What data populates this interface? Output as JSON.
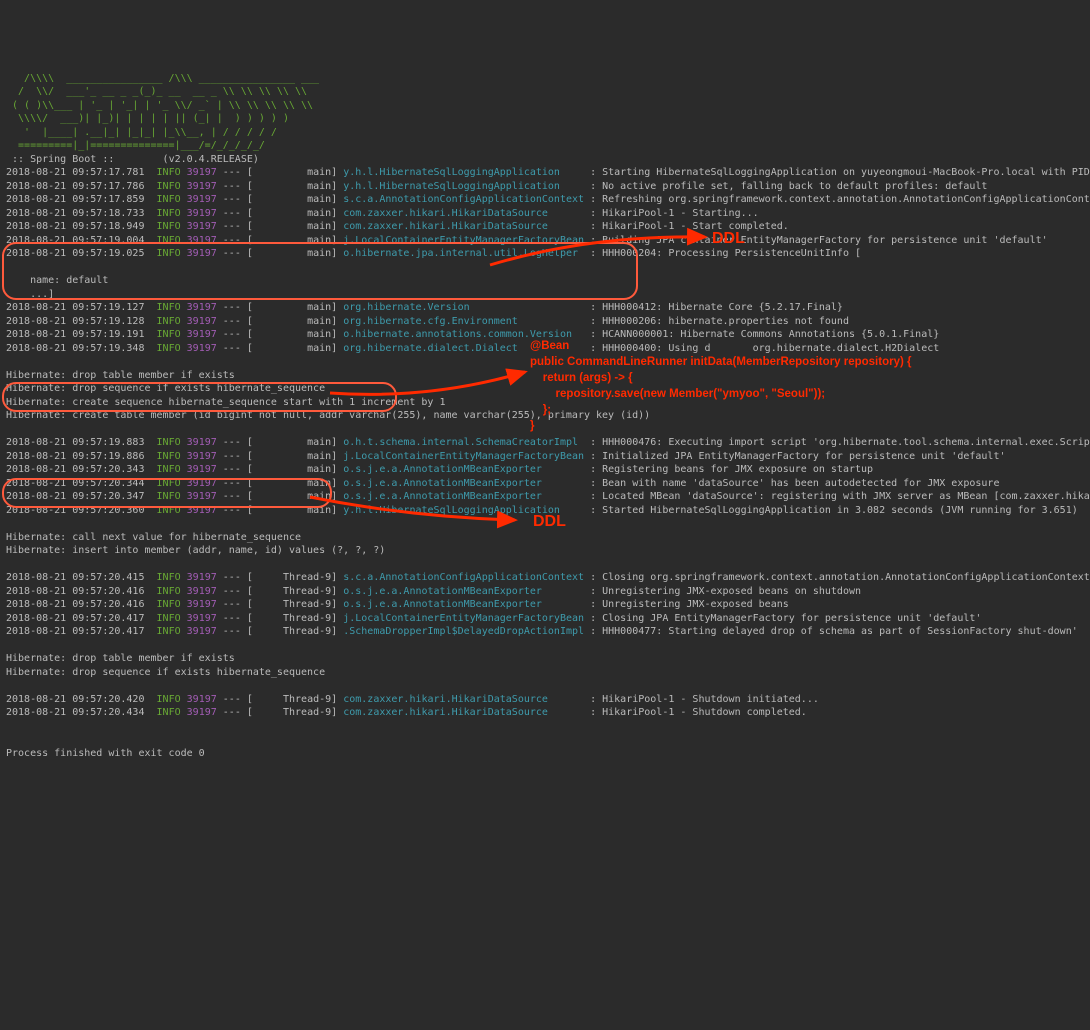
{
  "banner": {
    "ascii": "   /\\\\\\\\  ________________ /\\\\\\ ________________ ___\n  /  \\\\/  ___'_ __ _ _(_)_ __  __ _ \\\\ \\\\ \\\\ \\\\ \\\\\n ( ( )\\\\___ | '_ | '_| | '_ \\\\/ _` | \\\\ \\\\ \\\\ \\\\ \\\\\n  \\\\\\\\/  ___)| |_)| | | | | || (_| |  ) ) ) ) )\n   '  |____| .__|_| |_|_| |_\\\\__, | / / / / /\n  =========|_|==============|___/=/_/_/_/_/",
    "boot": " :: Spring Boot ::        ",
    "version": "(v2.0.4.RELEASE)"
  },
  "log": [
    {
      "ts": "2018-08-21 09:57:17.781",
      "lvl": "INFO",
      "pid": "39197",
      "thr": "main",
      "logger": "y.h.l.HibernateSqlLoggingApplication    ",
      "msg": ": Starting HibernateSqlLoggingApplication on yuyeongmoui-MacBook-Pro.local with PID"
    },
    {
      "ts": "2018-08-21 09:57:17.786",
      "lvl": "INFO",
      "pid": "39197",
      "thr": "main",
      "logger": "y.h.l.HibernateSqlLoggingApplication    ",
      "msg": ": No active profile set, falling back to default profiles: default"
    },
    {
      "ts": "2018-08-21 09:57:17.859",
      "lvl": "INFO",
      "pid": "39197",
      "thr": "main",
      "logger": "s.c.a.AnnotationConfigApplicationContext",
      "msg": ": Refreshing org.springframework.context.annotation.AnnotationConfigApplicationCont"
    },
    {
      "ts": "2018-08-21 09:57:18.733",
      "lvl": "INFO",
      "pid": "39197",
      "thr": "main",
      "logger": "com.zaxxer.hikari.HikariDataSource      ",
      "msg": ": HikariPool-1 - Starting..."
    },
    {
      "ts": "2018-08-21 09:57:18.949",
      "lvl": "INFO",
      "pid": "39197",
      "thr": "main",
      "logger": "com.zaxxer.hikari.HikariDataSource      ",
      "msg": ": HikariPool-1 - Start completed."
    },
    {
      "ts": "2018-08-21 09:57:19.004",
      "lvl": "INFO",
      "pid": "39197",
      "thr": "main",
      "logger": "j.LocalContainerEntityManagerFactoryBean",
      "msg": ": Building JPA container EntityManagerFactory for persistence unit 'default'"
    },
    {
      "ts": "2018-08-21 09:57:19.025",
      "lvl": "INFO",
      "pid": "39197",
      "thr": "main",
      "logger": "o.hibernate.jpa.internal.util.LogHelper ",
      "msg": ": HHH000204: Processing PersistenceUnitInfo ["
    }
  ],
  "logExtra": "    name: default\n    ...]",
  "log2": [
    {
      "ts": "2018-08-21 09:57:19.127",
      "lvl": "INFO",
      "pid": "39197",
      "thr": "main",
      "logger": "org.hibernate.Version                   ",
      "msg": ": HHH000412: Hibernate Core {5.2.17.Final}"
    },
    {
      "ts": "2018-08-21 09:57:19.128",
      "lvl": "INFO",
      "pid": "39197",
      "thr": "main",
      "logger": "org.hibernate.cfg.Environment           ",
      "msg": ": HHH000206: hibernate.properties not found"
    },
    {
      "ts": "2018-08-21 09:57:19.191",
      "lvl": "INFO",
      "pid": "39197",
      "thr": "main",
      "logger": "o.hibernate.annotations.common.Version  ",
      "msg": ": HCANN000001: Hibernate Commons Annotations {5.0.1.Final}"
    },
    {
      "ts": "2018-08-21 09:57:19.348",
      "lvl": "INFO",
      "pid": "39197",
      "thr": "main",
      "logger": "org.hibernate.dialect.Dialect           ",
      "msg": ": HHH000400: Using d       org.hibernate.dialect.H2Dialect"
    }
  ],
  "ddl1": [
    "Hibernate: drop table member if exists",
    "Hibernate: drop sequence if exists hibernate_sequence",
    "Hibernate: create sequence hibernate_sequence start with 1 increment by 1",
    "Hibernate: create table member (id bigint not null, addr varchar(255), name varchar(255), primary key (id))"
  ],
  "log3": [
    {
      "ts": "2018-08-21 09:57:19.883",
      "lvl": "INFO",
      "pid": "39197",
      "thr": "main",
      "logger": "o.h.t.schema.internal.SchemaCreatorImpl ",
      "msg": ": HHH000476: Executing import script 'org.hibernate.tool.schema.internal.exec.Scrip"
    },
    {
      "ts": "2018-08-21 09:57:19.886",
      "lvl": "INFO",
      "pid": "39197",
      "thr": "main",
      "logger": "j.LocalContainerEntityManagerFactoryBean",
      "msg": ": Initialized JPA EntityManagerFactory for persistence unit 'default'"
    },
    {
      "ts": "2018-08-21 09:57:20.343",
      "lvl": "INFO",
      "pid": "39197",
      "thr": "main",
      "logger": "o.s.j.e.a.AnnotationMBeanExporter       ",
      "msg": ": Registering beans for JMX exposure on startup"
    },
    {
      "ts": "2018-08-21 09:57:20.344",
      "lvl": "INFO",
      "pid": "39197",
      "thr": "main",
      "logger": "o.s.j.e.a.AnnotationMBeanExporter       ",
      "msg": ": Bean with name 'dataSource' has been autodetected for JMX exposure"
    },
    {
      "ts": "2018-08-21 09:57:20.347",
      "lvl": "INFO",
      "pid": "39197",
      "thr": "main",
      "logger": "o.s.j.e.a.AnnotationMBeanExporter       ",
      "msg": ": Located MBean 'dataSource': registering with JMX server as MBean [com.zaxxer.hika"
    },
    {
      "ts": "2018-08-21 09:57:20.360",
      "lvl": "INFO",
      "pid": "39197",
      "thr": "main",
      "logger": "y.h.l.HibernateSqlLoggingApplication    ",
      "msg": ": Started HibernateSqlLoggingApplication in 3.082 seconds (JVM running for 3.651)"
    }
  ],
  "ddl2": [
    "Hibernate: call next value for hibernate_sequence",
    "Hibernate: insert into member (addr, name, id) values (?, ?, ?)"
  ],
  "log4": [
    {
      "ts": "2018-08-21 09:57:20.415",
      "lvl": "INFO",
      "pid": "39197",
      "thr": "Thread-9",
      "logger": "s.c.a.AnnotationConfigApplicationContext",
      "msg": ": Closing org.springframework.context.annotation.AnnotationConfigApplicationContext"
    },
    {
      "ts": "2018-08-21 09:57:20.416",
      "lvl": "INFO",
      "pid": "39197",
      "thr": "Thread-9",
      "logger": "o.s.j.e.a.AnnotationMBeanExporter       ",
      "msg": ": Unregistering JMX-exposed beans on shutdown"
    },
    {
      "ts": "2018-08-21 09:57:20.416",
      "lvl": "INFO",
      "pid": "39197",
      "thr": "Thread-9",
      "logger": "o.s.j.e.a.AnnotationMBeanExporter       ",
      "msg": ": Unregistering JMX-exposed beans"
    },
    {
      "ts": "2018-08-21 09:57:20.417",
      "lvl": "INFO",
      "pid": "39197",
      "thr": "Thread-9",
      "logger": "j.LocalContainerEntityManagerFactoryBean",
      "msg": ": Closing JPA EntityManagerFactory for persistence unit 'default'"
    },
    {
      "ts": "2018-08-21 09:57:20.417",
      "lvl": "INFO",
      "pid": "39197",
      "thr": "Thread-9",
      "logger": ".SchemaDropperImpl$DelayedDropActionImpl",
      "msg": ": HHH000477: Starting delayed drop of schema as part of SessionFactory shut-down'"
    }
  ],
  "ddl3": [
    "Hibernate: drop table member if exists",
    "Hibernate: drop sequence if exists hibernate_sequence"
  ],
  "log5": [
    {
      "ts": "2018-08-21 09:57:20.420",
      "lvl": "INFO",
      "pid": "39197",
      "thr": "Thread-9",
      "logger": "com.zaxxer.hikari.HikariDataSource      ",
      "msg": ": HikariPool-1 - Shutdown initiated..."
    },
    {
      "ts": "2018-08-21 09:57:20.434",
      "lvl": "INFO",
      "pid": "39197",
      "thr": "Thread-9",
      "logger": "com.zaxxer.hikari.HikariDataSource      ",
      "msg": ": HikariPool-1 - Shutdown completed."
    }
  ],
  "exit": "Process finished with exit code 0",
  "annotations": {
    "ddl1": "DDL",
    "ddl2": "DDL",
    "code": "@Bean\npublic CommandLineRunner initData(MemberRepository repository) {\n    return (args) -> {\n        repository.save(new Member(\"ymyoo\", \"Seoul\"));\n    };\n}"
  },
  "style": {
    "accent": "#ff2a00",
    "boxBorder": "#ff5a3c",
    "bg": "#2b2b2b",
    "textDefault": "#bbbbbb",
    "levelColor": "#68a834",
    "pidColor": "#a35db5",
    "loggerColor": "#3e9bac"
  }
}
